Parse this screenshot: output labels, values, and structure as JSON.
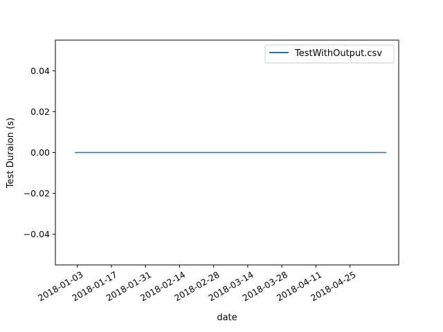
{
  "chart_data": {
    "type": "line",
    "title": "",
    "xlabel": "date",
    "ylabel": "Test Duraion (s)",
    "x_ticks": [
      "2018-01-03",
      "2018-01-17",
      "2018-01-31",
      "2018-02-14",
      "2018-02-28",
      "2018-03-14",
      "2018-03-28",
      "2018-04-11",
      "2018-04-25"
    ],
    "y_ticks": [
      "0.04",
      "0.02",
      "0.00",
      "−0.02",
      "−0.04"
    ],
    "y_tick_values": [
      0.04,
      0.02,
      0.0,
      -0.02,
      -0.04
    ],
    "xlim": [
      "2017-12-25",
      "2018-05-15"
    ],
    "ylim": [
      -0.055,
      0.055
    ],
    "grid": false,
    "legend_position": "top-right",
    "series": [
      {
        "name": "TestWithOutput.csv",
        "color": "#1f77b4",
        "x": [
          "2018-01-02",
          "2018-05-10"
        ],
        "y": [
          0.0,
          0.0
        ]
      }
    ]
  }
}
